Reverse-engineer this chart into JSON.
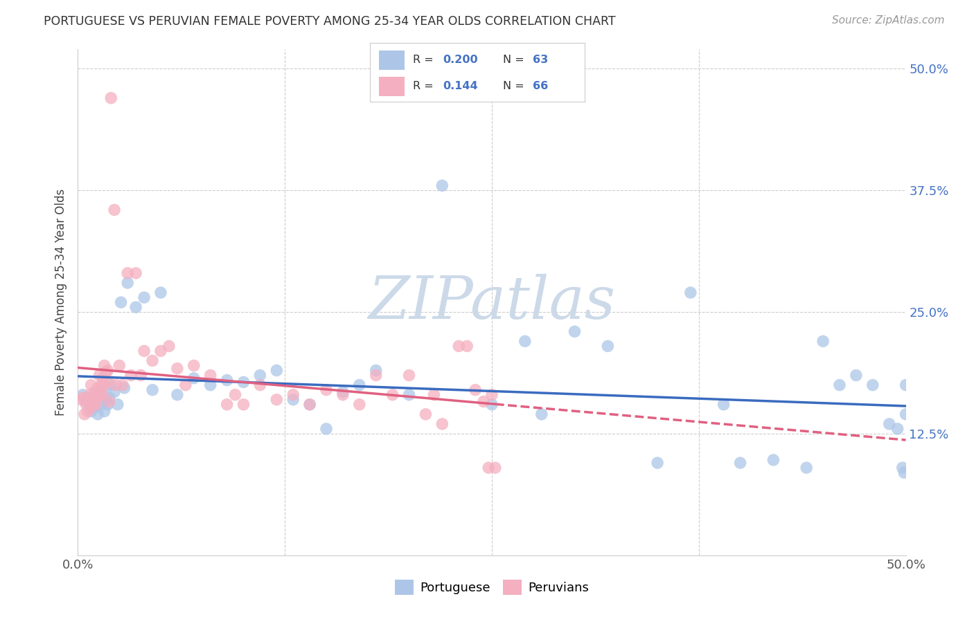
{
  "title": "PORTUGUESE VS PERUVIAN FEMALE POVERTY AMONG 25-34 YEAR OLDS CORRELATION CHART",
  "source": "Source: ZipAtlas.com",
  "ylabel": "Female Poverty Among 25-34 Year Olds",
  "xlim": [
    0,
    0.5
  ],
  "ylim": [
    0,
    0.52
  ],
  "ytick_labels_right": [
    "12.5%",
    "25.0%",
    "37.5%",
    "50.0%"
  ],
  "portuguese_R": "0.200",
  "portuguese_N": "63",
  "peruvian_R": "0.144",
  "peruvian_N": "66",
  "portuguese_color": "#adc6e8",
  "peruvian_color": "#f4afc0",
  "portuguese_line_color": "#3a6bbf",
  "peruvian_line_color": "#e06080",
  "background_color": "#ffffff",
  "watermark_color": "#ccd9e8",
  "portuguese_x": [
    0.003,
    0.005,
    0.006,
    0.007,
    0.008,
    0.009,
    0.01,
    0.01,
    0.011,
    0.012,
    0.013,
    0.014,
    0.015,
    0.016,
    0.017,
    0.018,
    0.019,
    0.02,
    0.022,
    0.024,
    0.026,
    0.028,
    0.03,
    0.035,
    0.04,
    0.045,
    0.05,
    0.06,
    0.07,
    0.08,
    0.09,
    0.1,
    0.11,
    0.12,
    0.13,
    0.14,
    0.15,
    0.16,
    0.17,
    0.18,
    0.2,
    0.22,
    0.25,
    0.27,
    0.28,
    0.3,
    0.32,
    0.35,
    0.37,
    0.39,
    0.4,
    0.42,
    0.44,
    0.45,
    0.46,
    0.47,
    0.48,
    0.49,
    0.495,
    0.498,
    0.499,
    0.5,
    0.5
  ],
  "portuguese_y": [
    0.165,
    0.158,
    0.162,
    0.155,
    0.148,
    0.16,
    0.157,
    0.152,
    0.163,
    0.145,
    0.168,
    0.155,
    0.17,
    0.148,
    0.16,
    0.155,
    0.162,
    0.175,
    0.168,
    0.155,
    0.26,
    0.172,
    0.28,
    0.255,
    0.265,
    0.17,
    0.27,
    0.165,
    0.182,
    0.175,
    0.18,
    0.178,
    0.185,
    0.19,
    0.16,
    0.155,
    0.13,
    0.168,
    0.175,
    0.19,
    0.165,
    0.38,
    0.155,
    0.22,
    0.145,
    0.23,
    0.215,
    0.095,
    0.27,
    0.155,
    0.095,
    0.098,
    0.09,
    0.22,
    0.175,
    0.185,
    0.175,
    0.135,
    0.13,
    0.09,
    0.085,
    0.175,
    0.145
  ],
  "peruvian_x": [
    0.002,
    0.003,
    0.004,
    0.005,
    0.006,
    0.007,
    0.007,
    0.008,
    0.008,
    0.009,
    0.01,
    0.01,
    0.011,
    0.012,
    0.012,
    0.013,
    0.013,
    0.014,
    0.015,
    0.015,
    0.016,
    0.016,
    0.017,
    0.018,
    0.018,
    0.019,
    0.02,
    0.022,
    0.023,
    0.025,
    0.027,
    0.03,
    0.032,
    0.035,
    0.038,
    0.04,
    0.045,
    0.05,
    0.055,
    0.06,
    0.065,
    0.07,
    0.08,
    0.09,
    0.095,
    0.1,
    0.11,
    0.12,
    0.13,
    0.14,
    0.15,
    0.16,
    0.17,
    0.18,
    0.19,
    0.2,
    0.21,
    0.215,
    0.22,
    0.23,
    0.235,
    0.24,
    0.245,
    0.248,
    0.25,
    0.252
  ],
  "peruvian_y": [
    0.16,
    0.162,
    0.145,
    0.155,
    0.148,
    0.158,
    0.165,
    0.152,
    0.175,
    0.16,
    0.168,
    0.158,
    0.155,
    0.162,
    0.172,
    0.165,
    0.185,
    0.175,
    0.182,
    0.165,
    0.195,
    0.175,
    0.188,
    0.178,
    0.19,
    0.158,
    0.47,
    0.355,
    0.175,
    0.195,
    0.175,
    0.29,
    0.185,
    0.29,
    0.185,
    0.21,
    0.2,
    0.21,
    0.215,
    0.192,
    0.175,
    0.195,
    0.185,
    0.155,
    0.165,
    0.155,
    0.175,
    0.16,
    0.165,
    0.155,
    0.17,
    0.165,
    0.155,
    0.185,
    0.165,
    0.185,
    0.145,
    0.165,
    0.135,
    0.215,
    0.215,
    0.17,
    0.158,
    0.09,
    0.165,
    0.09
  ]
}
